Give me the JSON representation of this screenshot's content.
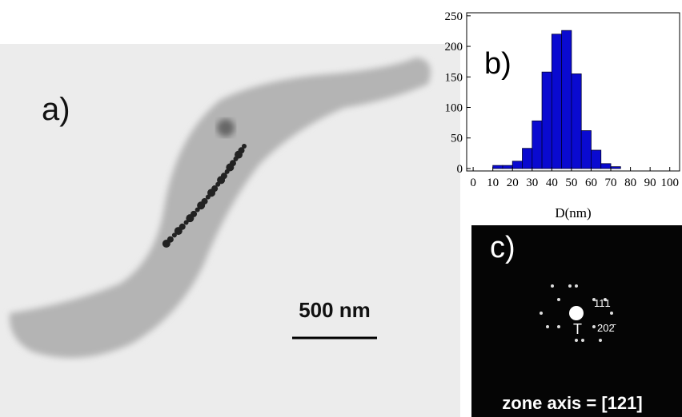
{
  "panels": {
    "a": {
      "label": "a)",
      "scale_bar": "500 nm"
    },
    "c": {
      "label": "c)",
      "spot_1": "11̄1",
      "spot_2": "202̄",
      "transmitted": "T",
      "zone_axis": "zone axis = [121]"
    }
  },
  "chart_data": {
    "type": "histogram",
    "annotation": "b)",
    "x_label": "D(nm)",
    "bins": [
      10,
      15,
      20,
      25,
      30,
      35,
      40,
      45,
      50,
      55,
      60,
      65,
      70,
      75
    ],
    "counts": [
      5,
      5,
      12,
      33,
      78,
      158,
      220,
      226,
      155,
      62,
      30,
      8,
      3
    ],
    "color": "#0a0ad0",
    "xlim": [
      -3.3,
      105
    ],
    "ylim": [
      -4,
      255
    ],
    "xticks": [
      0,
      10,
      20,
      30,
      40,
      50,
      60,
      70,
      80,
      90,
      100
    ],
    "yticks": [
      0,
      50,
      100,
      150,
      200,
      250
    ]
  }
}
